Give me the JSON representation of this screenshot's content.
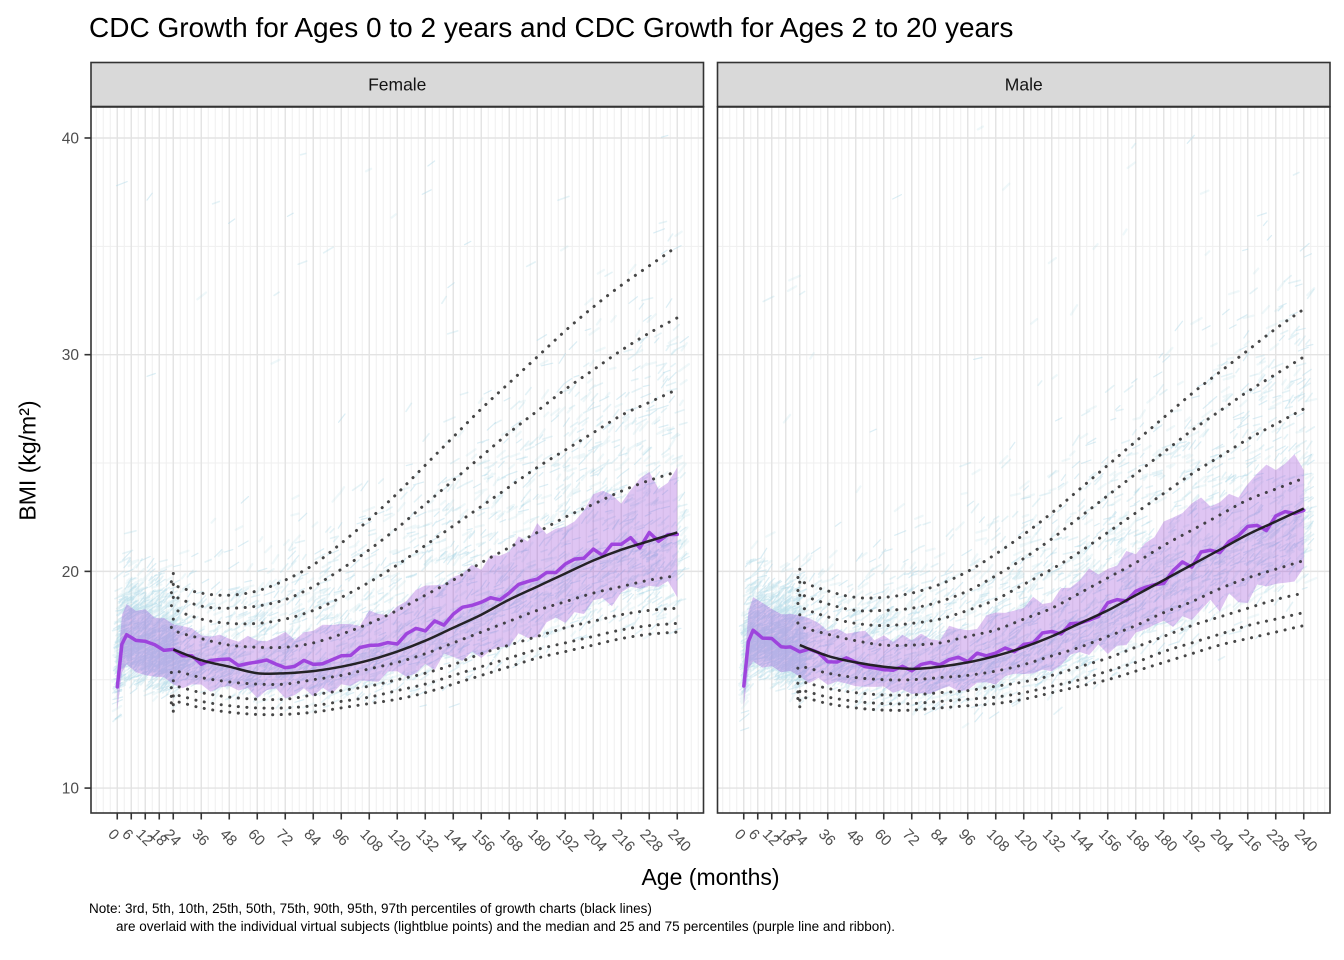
{
  "chart_data": {
    "type": "line",
    "title": "CDC Growth for Ages 0 to 2 years and CDC Growth for Ages 2 to 20 years",
    "xlabel": "Age (months)",
    "ylabel": "BMI (kg/m²)",
    "note_lines": [
      "Note: 3rd, 5th, 10th, 25th, 50th, 75th, 90th, 95th, 97th percentiles of growth charts (black lines)",
      "are overlaid with the individual virtual subjects (lightblue points) and the median and 25 and 75 percentiles (purple line and ribbon)."
    ],
    "x_breaks": [
      0,
      6,
      12,
      18,
      24,
      36,
      48,
      60,
      72,
      84,
      96,
      108,
      120,
      132,
      144,
      156,
      168,
      180,
      192,
      204,
      216,
      228,
      240
    ],
    "y_breaks": [
      10,
      20,
      30,
      40
    ],
    "y_minor": [
      15,
      25,
      35
    ],
    "xlim": [
      -11.25,
      251.25
    ],
    "ylim": [
      8.85,
      41.43
    ],
    "grid": true,
    "legend": "none",
    "percentile_labels": [
      "3rd",
      "5th",
      "10th",
      "25th",
      "50th",
      "75th",
      "90th",
      "95th",
      "97th"
    ],
    "percentile_months": [
      24,
      36,
      48,
      60,
      72,
      84,
      96,
      108,
      120,
      132,
      144,
      156,
      168,
      180,
      192,
      204,
      216,
      228,
      240
    ],
    "median_months": [
      0,
      1,
      3,
      6,
      9,
      12,
      18,
      24,
      36,
      48,
      60,
      72,
      84,
      96,
      108,
      120,
      132,
      144,
      156,
      168,
      180,
      192,
      204,
      216,
      228,
      240
    ],
    "panels": [
      {
        "label": "Female",
        "percentiles": {
          "p3": [
            14.0,
            13.7,
            13.5,
            13.4,
            13.4,
            13.5,
            13.7,
            13.9,
            14.1,
            14.4,
            14.8,
            15.2,
            15.6,
            16.0,
            16.3,
            16.6,
            16.9,
            17.1,
            17.2
          ],
          "p5": [
            14.3,
            14.0,
            13.8,
            13.7,
            13.7,
            13.8,
            14.0,
            14.2,
            14.5,
            14.8,
            15.2,
            15.6,
            16.0,
            16.4,
            16.7,
            17.0,
            17.3,
            17.5,
            17.6
          ],
          "p10": [
            14.7,
            14.4,
            14.2,
            14.1,
            14.1,
            14.3,
            14.5,
            14.7,
            15.0,
            15.3,
            15.7,
            16.2,
            16.6,
            17.0,
            17.4,
            17.7,
            18.0,
            18.2,
            18.3
          ],
          "p25": [
            15.4,
            15.1,
            14.9,
            14.8,
            14.8,
            15.0,
            15.2,
            15.5,
            15.8,
            16.2,
            16.7,
            17.2,
            17.7,
            18.2,
            18.6,
            19.0,
            19.3,
            19.6,
            19.8
          ],
          "p50": [
            16.4,
            15.9,
            15.6,
            15.3,
            15.3,
            15.4,
            15.6,
            15.9,
            16.3,
            16.8,
            17.4,
            18.0,
            18.7,
            19.3,
            19.9,
            20.5,
            21.0,
            21.4,
            21.8
          ],
          "p75": [
            17.3,
            16.9,
            16.6,
            16.5,
            16.5,
            16.7,
            17.1,
            17.6,
            18.2,
            18.9,
            19.6,
            20.4,
            21.1,
            21.8,
            22.5,
            23.1,
            23.7,
            24.2,
            24.6
          ],
          "p90": [
            18.3,
            17.8,
            17.6,
            17.6,
            17.8,
            18.2,
            18.8,
            19.5,
            20.3,
            21.2,
            22.1,
            23.0,
            23.9,
            24.8,
            25.6,
            26.4,
            27.2,
            27.8,
            28.4
          ],
          "p95": [
            18.9,
            18.4,
            18.3,
            18.4,
            18.7,
            19.3,
            20.1,
            21.0,
            22.0,
            23.1,
            24.2,
            25.3,
            26.4,
            27.4,
            28.4,
            29.3,
            30.2,
            31.0,
            31.7
          ],
          "p97": [
            19.4,
            19.0,
            18.9,
            19.1,
            19.6,
            20.3,
            21.3,
            22.4,
            23.6,
            24.9,
            26.2,
            27.5,
            28.7,
            29.9,
            31.1,
            32.2,
            33.2,
            34.1,
            35.0
          ]
        },
        "median": [
          14.5,
          16.0,
          17.0,
          16.9,
          16.8,
          16.7,
          16.5,
          16.3,
          15.9,
          15.8,
          15.7,
          15.7,
          15.8,
          16.1,
          16.4,
          16.8,
          17.3,
          17.9,
          18.5,
          19.1,
          19.7,
          20.3,
          20.8,
          21.2,
          21.5,
          21.7
        ],
        "ribbon_lower": [
          13.6,
          14.9,
          15.6,
          15.5,
          15.4,
          15.3,
          15.1,
          14.9,
          14.6,
          14.5,
          14.4,
          14.4,
          14.5,
          14.7,
          14.9,
          15.2,
          15.6,
          16.0,
          16.4,
          16.9,
          17.4,
          17.9,
          18.3,
          18.7,
          19.0,
          19.2
        ],
        "ribbon_upper": [
          15.2,
          17.3,
          18.5,
          18.4,
          18.3,
          18.2,
          17.9,
          17.7,
          17.2,
          17.0,
          16.9,
          17.0,
          17.2,
          17.5,
          17.9,
          18.4,
          19.0,
          19.7,
          20.4,
          21.1,
          21.8,
          22.5,
          23.1,
          23.6,
          24.1,
          24.5
        ],
        "cloud": {
          "seed": 7,
          "n": 4300,
          "infant_fraction": 0.3
        }
      },
      {
        "label": "Male",
        "percentiles": {
          "p3": [
            14.2,
            13.9,
            13.7,
            13.6,
            13.6,
            13.7,
            13.8,
            13.9,
            14.1,
            14.4,
            14.7,
            15.0,
            15.4,
            15.8,
            16.2,
            16.6,
            16.9,
            17.2,
            17.5
          ],
          "p5": [
            14.5,
            14.2,
            14.0,
            13.9,
            13.9,
            14.0,
            14.1,
            14.2,
            14.4,
            14.7,
            15.0,
            15.4,
            15.8,
            16.3,
            16.7,
            17.1,
            17.5,
            17.8,
            18.1
          ],
          "p10": [
            14.9,
            14.6,
            14.4,
            14.3,
            14.3,
            14.4,
            14.5,
            14.7,
            14.9,
            15.2,
            15.6,
            16.0,
            16.5,
            17.0,
            17.5,
            17.9,
            18.3,
            18.7,
            19.0
          ],
          "p25": [
            15.6,
            15.3,
            15.1,
            15.0,
            15.0,
            15.1,
            15.2,
            15.4,
            15.7,
            16.1,
            16.5,
            17.0,
            17.5,
            18.1,
            18.6,
            19.2,
            19.7,
            20.1,
            20.5
          ],
          "p50": [
            16.6,
            16.1,
            15.8,
            15.6,
            15.5,
            15.6,
            15.8,
            16.1,
            16.5,
            17.0,
            17.6,
            18.2,
            18.9,
            19.6,
            20.3,
            21.0,
            21.7,
            22.3,
            22.9
          ],
          "p75": [
            17.5,
            17.1,
            16.8,
            16.6,
            16.6,
            16.7,
            17.0,
            17.3,
            17.8,
            18.3,
            19.0,
            19.7,
            20.4,
            21.2,
            21.9,
            22.6,
            23.3,
            23.8,
            24.3
          ],
          "p90": [
            18.4,
            17.9,
            17.6,
            17.5,
            17.6,
            17.8,
            18.2,
            18.7,
            19.4,
            20.1,
            20.9,
            21.8,
            22.7,
            23.6,
            24.5,
            25.3,
            26.1,
            26.8,
            27.5
          ],
          "p95": [
            19.0,
            18.5,
            18.2,
            18.2,
            18.3,
            18.6,
            19.1,
            19.8,
            20.6,
            21.5,
            22.5,
            23.5,
            24.5,
            25.5,
            26.5,
            27.4,
            28.3,
            29.1,
            29.9
          ],
          "p97": [
            19.6,
            19.1,
            18.8,
            18.8,
            19.0,
            19.4,
            20.0,
            20.8,
            21.7,
            22.7,
            23.8,
            24.9,
            26.0,
            27.1,
            28.2,
            29.2,
            30.2,
            31.2,
            32.1
          ]
        },
        "median": [
          14.7,
          16.2,
          17.2,
          17.1,
          17.0,
          16.9,
          16.6,
          16.4,
          16.0,
          15.8,
          15.6,
          15.6,
          15.7,
          15.9,
          16.2,
          16.6,
          17.1,
          17.7,
          18.3,
          19.0,
          19.7,
          20.4,
          21.1,
          21.8,
          22.4,
          23.0
        ],
        "ribbon_lower": [
          13.8,
          15.1,
          15.8,
          15.7,
          15.6,
          15.5,
          15.3,
          15.1,
          14.8,
          14.6,
          14.5,
          14.5,
          14.5,
          14.7,
          14.9,
          15.2,
          15.6,
          16.0,
          16.5,
          17.0,
          17.5,
          18.0,
          18.5,
          19.0,
          19.4,
          19.7
        ],
        "ribbon_upper": [
          15.4,
          17.5,
          18.7,
          18.6,
          18.5,
          18.4,
          18.1,
          17.9,
          17.4,
          17.1,
          17.0,
          17.0,
          17.1,
          17.4,
          17.8,
          18.3,
          18.9,
          19.6,
          20.3,
          21.1,
          21.9,
          22.7,
          23.4,
          24.1,
          24.7,
          25.2
        ],
        "cloud": {
          "seed": 13,
          "n": 4300,
          "infant_fraction": 0.3
        }
      }
    ],
    "colors": {
      "cloud": "#a9d7e6",
      "purple_line": "#9b3bdc",
      "ribbon_fill": "#9640d8",
      "ribbon_alpha": 0.3,
      "dotted_line": "#2e2e2e",
      "solid_p50": "#1a1a1a",
      "strip_bg": "#d9d9d9",
      "strip_border": "#333333",
      "panel_border": "#333333",
      "grid_major": "#e3e3e3",
      "grid_minor": "#efefef",
      "axis_text": "#4d4d4d",
      "tick_mark": "#333333",
      "title_text": "#000000"
    }
  }
}
